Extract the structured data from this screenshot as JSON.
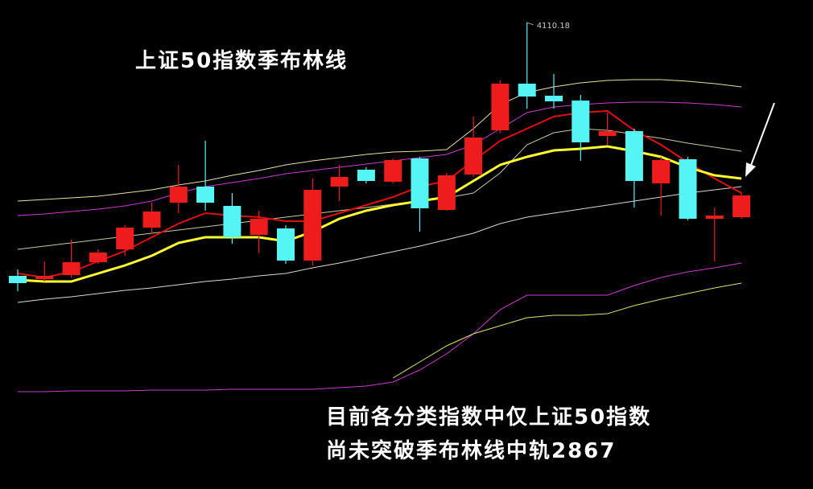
{
  "chart_data": {
    "type": "candlestick",
    "title": "上证50指数季布林线",
    "annotations": [
      "目前各分类指数中仅上证50指数",
      "尚未突破季布林线中轨2867"
    ],
    "categories": [
      null,
      null,
      null,
      null,
      null,
      null,
      null,
      null,
      null,
      null,
      null,
      null,
      null,
      null,
      null,
      null,
      null,
      null,
      null,
      null,
      null,
      null,
      null,
      null,
      null,
      null,
      null,
      null
    ],
    "open": [
      3480,
      3472,
      3482,
      3514,
      3546,
      3600,
      3662,
      3702,
      3654,
      3582,
      3598,
      3518,
      3702,
      3744,
      3714,
      3772,
      3644,
      3732,
      3842,
      3958,
      3928,
      3916,
      3828,
      3840,
      3710,
      3770,
      3622,
      3626
    ],
    "high": [
      3496,
      3516,
      3570,
      3546,
      3606,
      3662,
      3756,
      3816,
      3686,
      3642,
      3606,
      3722,
      3756,
      3750,
      3772,
      3776,
      3736,
      3876,
      3966,
      4110.18,
      3982,
      3930,
      3886,
      3846,
      3776,
      3776,
      3650,
      3686
    ],
    "low": [
      3442,
      3466,
      3476,
      3510,
      3530,
      3586,
      3636,
      3642,
      3560,
      3536,
      3510,
      3506,
      3666,
      3710,
      3710,
      3590,
      3642,
      3726,
      3836,
      3896,
      3896,
      3766,
      3806,
      3650,
      3630,
      3618,
      3516,
      3622
    ],
    "close": [
      3462,
      3480,
      3514,
      3538,
      3600,
      3640,
      3702,
      3662,
      3576,
      3622,
      3518,
      3694,
      3726,
      3716,
      3768,
      3648,
      3730,
      3824,
      3958,
      3926,
      3914,
      3812,
      3840,
      3716,
      3768,
      3622,
      3630,
      3680
    ],
    "up_color": "#ee1c1c",
    "down_color": "#55f5f5",
    "high_label_index": 19,
    "series": [
      {
        "color": "#e8e0a0",
        "width": 1,
        "values": [
          3666,
          3670,
          3674,
          3678,
          3686,
          3694,
          3706,
          3716,
          3730,
          3742,
          3756,
          3766,
          3774,
          3782,
          3788,
          3790,
          3794,
          3846,
          3906,
          3936,
          3950,
          3960,
          3966,
          3968,
          3968,
          3964,
          3958,
          3950
        ]
      },
      {
        "color": "#cc3ccc",
        "width": 1,
        "values": [
          3630,
          3634,
          3640,
          3646,
          3654,
          3666,
          3686,
          3702,
          3712,
          3722,
          3734,
          3742,
          3750,
          3758,
          3766,
          3774,
          3782,
          3806,
          3846,
          3886,
          3900,
          3906,
          3910,
          3912,
          3912,
          3910,
          3906,
          3900
        ]
      },
      {
        "color": "#c8c8a0",
        "width": 1,
        "values": [
          3546,
          3554,
          3562,
          3570,
          3578,
          3586,
          3594,
          3602,
          3610,
          3618,
          3626,
          3634,
          3642,
          3650,
          3658,
          3666,
          3674,
          3686,
          3736,
          3806,
          3836,
          3846,
          3842,
          3832,
          3822,
          3810,
          3800,
          3790
        ]
      },
      {
        "color": "#d8d8d8",
        "width": 1,
        "values": [
          3414,
          3422,
          3428,
          3436,
          3444,
          3450,
          3458,
          3466,
          3472,
          3480,
          3486,
          3500,
          3512,
          3526,
          3540,
          3554,
          3570,
          3586,
          3610,
          3626,
          3636,
          3646,
          3656,
          3666,
          3676,
          3686,
          3694,
          3702
        ]
      },
      {
        "color": "#cc3ccc",
        "width": 1,
        "values": [
          3192,
          3192,
          3194,
          3194,
          3194,
          3196,
          3196,
          3196,
          3198,
          3198,
          3198,
          3198,
          3202,
          3206,
          3216,
          3246,
          3286,
          3336,
          3396,
          3432,
          3432,
          3432,
          3432,
          3456,
          3476,
          3490,
          3500,
          3512
        ]
      },
      {
        "color": "#e0e070",
        "width": 1,
        "values": [
          null,
          null,
          null,
          null,
          null,
          null,
          null,
          null,
          null,
          null,
          null,
          null,
          null,
          null,
          3226,
          3266,
          3306,
          3336,
          3356,
          3376,
          3382,
          3382,
          3386,
          3406,
          3422,
          3436,
          3450,
          3462
        ]
      },
      {
        "color": "#e01010",
        "width": 2,
        "values": [
          3486,
          3476,
          3490,
          3516,
          3542,
          3576,
          3610,
          3636,
          3630,
          3626,
          3616,
          3616,
          3636,
          3656,
          3676,
          3702,
          3716,
          3766,
          3816,
          3846,
          3876,
          3886,
          3890,
          3842,
          3806,
          3762,
          3722,
          3686
        ]
      },
      {
        "color": "#ffff30",
        "width": 3,
        "values": [
          3470,
          3466,
          3466,
          3486,
          3506,
          3530,
          3562,
          3576,
          3576,
          3576,
          3566,
          3590,
          3622,
          3642,
          3656,
          3666,
          3676,
          3716,
          3756,
          3776,
          3792,
          3796,
          3802,
          3790,
          3776,
          3750,
          3730,
          3722
        ]
      }
    ],
    "ylim": [
      2950,
      4166
    ]
  }
}
